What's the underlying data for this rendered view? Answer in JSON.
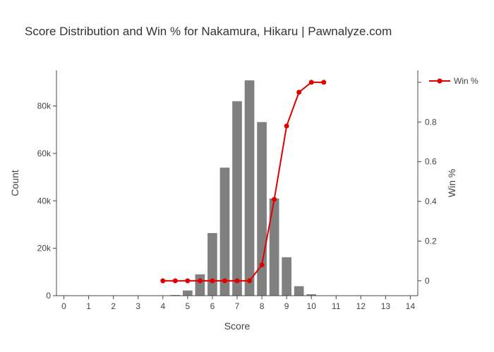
{
  "chart_data": {
    "type": "bar",
    "title": "Score Distribution and Win % for Nakamura, Hikaru | Pawnalyze.com",
    "xlabel": "Score",
    "ylabel": "Count",
    "y2label": "Win %",
    "xlim": [
      -0.3,
      14.3
    ],
    "ylim": [
      0,
      95000
    ],
    "y2lim": [
      -0.075,
      1.06
    ],
    "x_ticks": [
      0,
      1,
      2,
      3,
      4,
      5,
      6,
      7,
      8,
      9,
      10,
      11,
      12,
      13,
      14
    ],
    "y_ticks": [
      0,
      20000,
      40000,
      60000,
      80000
    ],
    "y_tick_labels": [
      "0",
      "20k",
      "40k",
      "60k",
      "80k"
    ],
    "y2_ticks": [
      0,
      0.2,
      0.4,
      0.6,
      0.8
    ],
    "y2_tick_labels": [
      "0",
      "0.2",
      "0.4",
      "0.6",
      "0.8"
    ],
    "grid": false,
    "legend_position": "top-right",
    "bar_color": "#808080",
    "line_color": "#e00000",
    "bars": {
      "x": [
        4.5,
        5,
        5.5,
        6,
        6.5,
        7,
        7.5,
        8,
        8.5,
        9,
        9.5,
        10
      ],
      "values": [
        300,
        2200,
        9000,
        26400,
        54000,
        82000,
        90800,
        73200,
        41000,
        16200,
        4000,
        600
      ]
    },
    "series": [
      {
        "name": "Win %",
        "axis": "y2",
        "x": [
          4,
          4.5,
          5,
          5.5,
          6,
          6.5,
          7,
          7.5,
          8,
          8.5,
          9,
          9.5,
          10,
          10.5
        ],
        "values": [
          0,
          0,
          0,
          0,
          0,
          0,
          0,
          0,
          0.08,
          0.41,
          0.78,
          0.95,
          1.0,
          1.0
        ]
      }
    ]
  }
}
